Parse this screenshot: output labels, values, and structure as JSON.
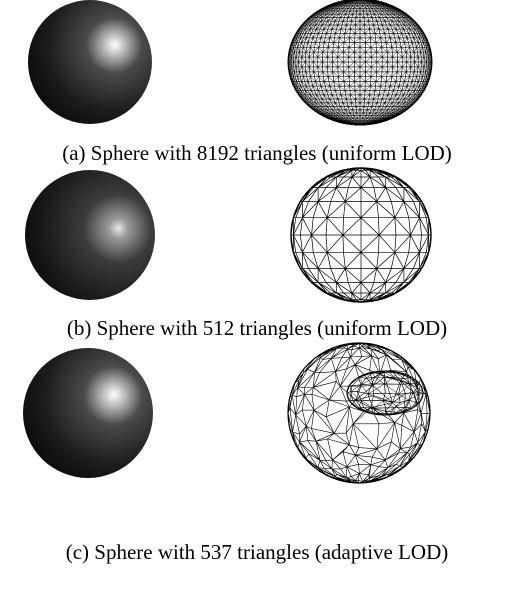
{
  "figure": {
    "panels": [
      {
        "caption": "(a) Sphere with 8192 triangles (uniform LOD)"
      },
      {
        "caption": "(b) Sphere with 512 triangles (uniform LOD)"
      },
      {
        "caption": "(c) Sphere with 537 triangles (adaptive LOD)"
      }
    ]
  }
}
